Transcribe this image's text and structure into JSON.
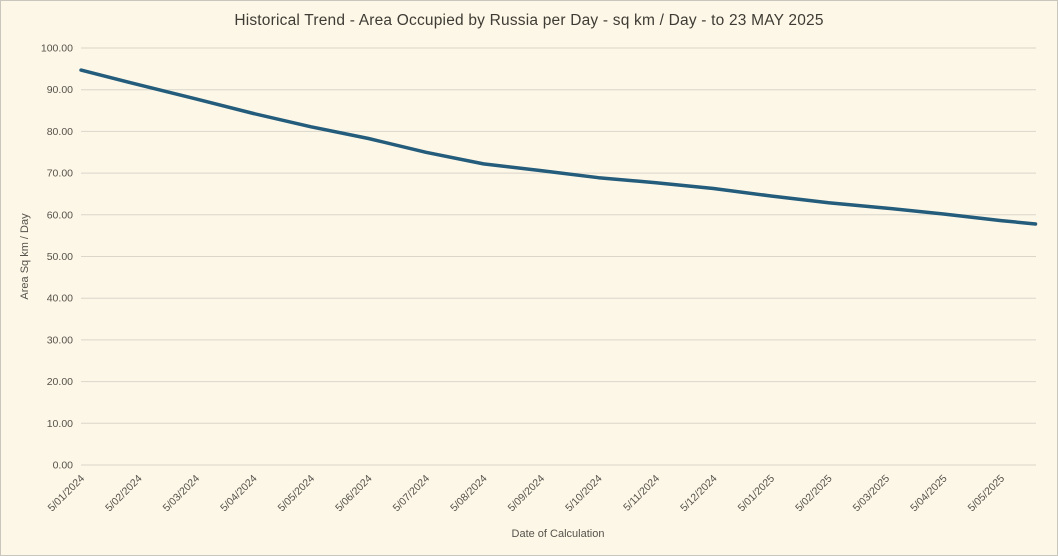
{
  "chart_data": {
    "type": "line",
    "title": "Historical Trend - Area Occupied by Russia per Day - sq km / Day - to 23 MAY 2025",
    "xlabel": "Date of Calculation",
    "ylabel": "Area Sq km / Day",
    "ylim": [
      0,
      100
    ],
    "y_tick_labels": [
      "0.00",
      "10.00",
      "20.00",
      "30.00",
      "40.00",
      "50.00",
      "60.00",
      "70.00",
      "80.00",
      "90.00",
      "100.00"
    ],
    "x_tick_labels": [
      "5/01/2024",
      "5/02/2024",
      "5/03/2024",
      "5/04/2024",
      "5/05/2024",
      "5/06/2024",
      "5/07/2024",
      "5/08/2024",
      "5/09/2024",
      "5/10/2024",
      "5/11/2024",
      "5/12/2024",
      "5/01/2025",
      "5/02/2025",
      "5/03/2025",
      "5/04/2025",
      "5/05/2025"
    ],
    "grid": "horizontal-only",
    "legend": "none",
    "series": [
      {
        "name": "Area Sq km / Day",
        "color": "#245C7C",
        "points": [
          {
            "date": "5/01/2024",
            "t": 0,
            "value": 94.7
          },
          {
            "date": "5/02/2024",
            "t": 1,
            "value": 91.2
          },
          {
            "date": "5/03/2024",
            "t": 2,
            "value": 87.8
          },
          {
            "date": "5/04/2024",
            "t": 3,
            "value": 84.3
          },
          {
            "date": "5/05/2024",
            "t": 4,
            "value": 81.1
          },
          {
            "date": "5/06/2024",
            "t": 5,
            "value": 78.3
          },
          {
            "date": "5/07/2024",
            "t": 6,
            "value": 75.0
          },
          {
            "date": "5/08/2024",
            "t": 7,
            "value": 72.2
          },
          {
            "date": "5/09/2024",
            "t": 8,
            "value": 70.6
          },
          {
            "date": "5/10/2024",
            "t": 9,
            "value": 68.9
          },
          {
            "date": "5/11/2024",
            "t": 10,
            "value": 67.7
          },
          {
            "date": "5/12/2024",
            "t": 11,
            "value": 66.3
          },
          {
            "date": "5/01/2025",
            "t": 12,
            "value": 64.5
          },
          {
            "date": "5/02/2025",
            "t": 13,
            "value": 62.9
          },
          {
            "date": "5/03/2025",
            "t": 14,
            "value": 61.6
          },
          {
            "date": "5/04/2025",
            "t": 15,
            "value": 60.2
          },
          {
            "date": "5/05/2025",
            "t": 16,
            "value": 58.6
          },
          {
            "date": "23/05/2025",
            "t": 16.6,
            "value": 57.8
          }
        ]
      }
    ]
  },
  "colors": {
    "background": "#FDF7E7",
    "border": "#C9C6BD",
    "gridline": "#DAD6CA",
    "line": "#245C7C",
    "title_text": "#3F3C35",
    "tick_text": "#55524B"
  }
}
